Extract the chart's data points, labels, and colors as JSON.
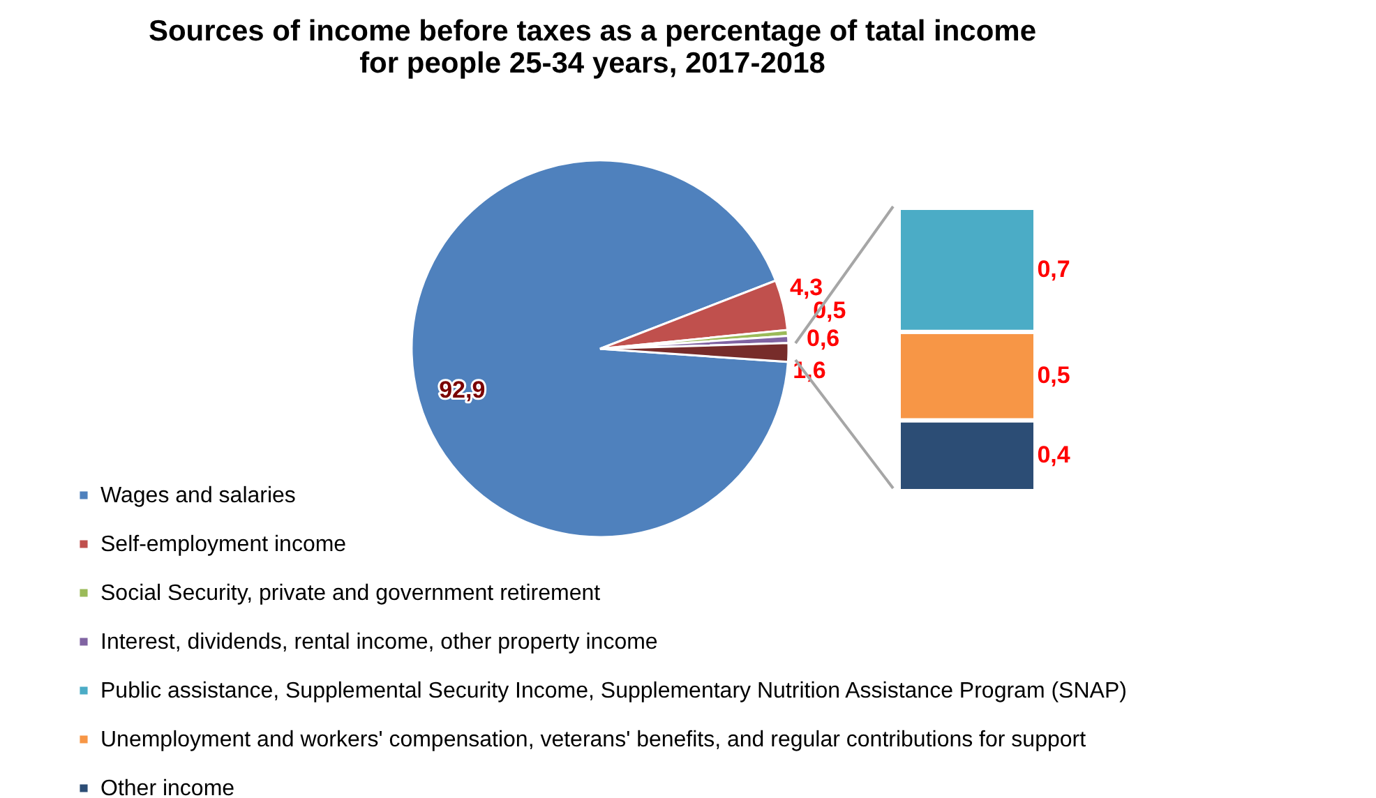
{
  "chart_data": [
    {
      "type": "pie",
      "title": "Sources of income before taxes as a percentage of tatal income\nfor people 25-34 years, 2017-2018",
      "categories": [
        "Wages and salaries",
        "Self-employment income",
        "Social Security, private and government retirement",
        "Interest, dividends, rental income, other property income",
        null
      ],
      "values": [
        92.9,
        4.3,
        0.5,
        0.6,
        1.6
      ],
      "value_labels": [
        "92,9",
        "4,3",
        "0,5",
        "0,6",
        "1,6"
      ],
      "colors": [
        "#4f81bd",
        "#c0504d",
        "#9bbb59",
        "#8064a2",
        "#772c2a"
      ],
      "legend": "bottom left"
    },
    {
      "type": "bar",
      "stacked": true,
      "categories": [
        null
      ],
      "series": [
        {
          "name": "Other income",
          "color": "#2c4d75",
          "values": [
            0.4
          ],
          "value_labels": [
            "0,4"
          ]
        },
        {
          "name": "Unemployment and workers' compensation, veterans' benefits, and regular contributions for support",
          "color": "#f79646",
          "values": [
            0.5
          ],
          "value_labels": [
            "0,5"
          ]
        },
        {
          "name": "Public assistance, Supplemental Security Income, Supplementary Nutrition Assistance Program (SNAP)",
          "color": "#4bacc6",
          "values": [
            0.7
          ],
          "value_labels": [
            "0,7"
          ]
        }
      ],
      "legend": "bottom left"
    }
  ]
}
